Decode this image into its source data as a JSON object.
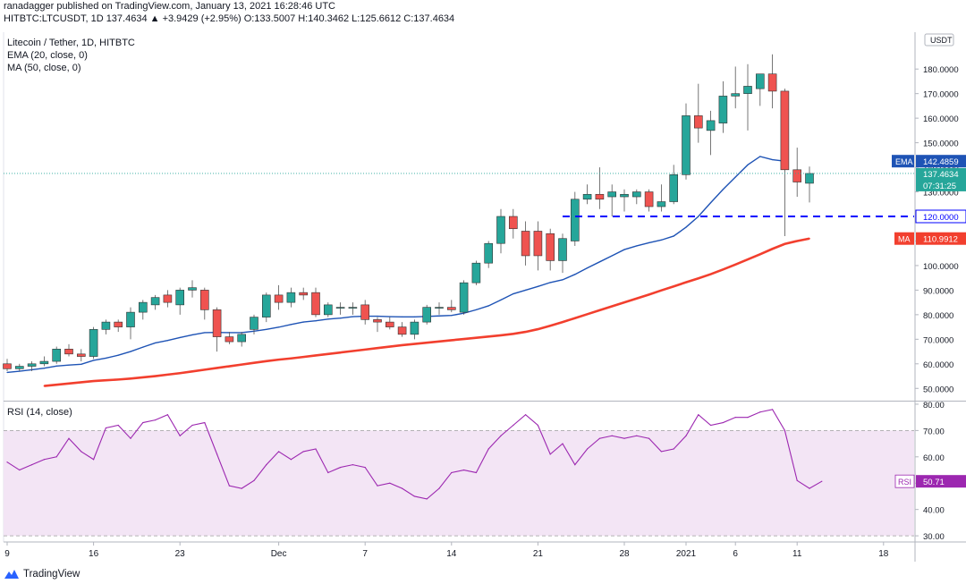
{
  "header": {
    "line1": "ranadagger published on TradingView.com, January 13, 2021 16:28:46 UTC",
    "line2": "HITBTC:LTCUSDT, 1D  137.4634  ▲ +3.9429 (+2.95%)  O:133.5007  H:140.3462  L:125.6612  C:137.4634"
  },
  "legend": {
    "title": "Litecoin / Tether, 1D, HITBTC",
    "ema": "EMA (20, close, 0)",
    "ma": "MA (50, close, 0)",
    "rsi": "RSI (14, close)"
  },
  "footer": {
    "brand": "TradingView"
  },
  "colors": {
    "up": "#26a69a",
    "down": "#ef5350",
    "ema": "#1e53b5",
    "ma": "#f23f2e",
    "rsi_line": "#9c27b0",
    "rsi_band": "#f3e5f5",
    "dash": "#0000ff"
  },
  "chart_data": [
    {
      "type": "candlestick",
      "currency_badge": "USDT",
      "y_ticks": [
        "180.0000",
        "170.0000",
        "160.0000",
        "150.0000",
        "140.0000",
        "130.0000",
        "120.0000",
        "110.0000",
        "100.0000",
        "90.0000",
        "80.0000",
        "70.0000",
        "60.0000",
        "50.0000"
      ],
      "x_tick_labels": [
        "9",
        "16",
        "23",
        "Dec",
        "7",
        "14",
        "21",
        "28",
        "2021",
        "6",
        "11",
        "18"
      ],
      "x_tick_index": [
        0,
        7,
        14,
        22,
        29,
        36,
        43,
        50,
        55,
        59,
        64,
        71
      ],
      "ylim": [
        45,
        195
      ],
      "candles": [
        {
          "o": 60,
          "h": 62,
          "l": 57,
          "c": 58
        },
        {
          "o": 58,
          "h": 60,
          "l": 57,
          "c": 59
        },
        {
          "o": 59,
          "h": 61,
          "l": 57,
          "c": 60
        },
        {
          "o": 60,
          "h": 63,
          "l": 59,
          "c": 61
        },
        {
          "o": 61,
          "h": 67,
          "l": 60,
          "c": 66
        },
        {
          "o": 66,
          "h": 68,
          "l": 63,
          "c": 64
        },
        {
          "o": 64,
          "h": 66,
          "l": 61,
          "c": 63
        },
        {
          "o": 63,
          "h": 75,
          "l": 62,
          "c": 74
        },
        {
          "o": 74,
          "h": 78,
          "l": 72,
          "c": 77
        },
        {
          "o": 77,
          "h": 78,
          "l": 73,
          "c": 75
        },
        {
          "o": 75,
          "h": 83,
          "l": 70,
          "c": 81
        },
        {
          "o": 81,
          "h": 86,
          "l": 78,
          "c": 85
        },
        {
          "o": 84,
          "h": 88,
          "l": 82,
          "c": 87
        },
        {
          "o": 88,
          "h": 90,
          "l": 83,
          "c": 85
        },
        {
          "o": 84,
          "h": 91,
          "l": 80,
          "c": 90
        },
        {
          "o": 90,
          "h": 94,
          "l": 87,
          "c": 91
        },
        {
          "o": 90,
          "h": 91,
          "l": 78,
          "c": 82
        },
        {
          "o": 82,
          "h": 83,
          "l": 65,
          "c": 71
        },
        {
          "o": 71,
          "h": 73,
          "l": 68,
          "c": 69
        },
        {
          "o": 69,
          "h": 73,
          "l": 67,
          "c": 72
        },
        {
          "o": 74,
          "h": 80,
          "l": 72,
          "c": 79
        },
        {
          "o": 79,
          "h": 89,
          "l": 77,
          "c": 88
        },
        {
          "o": 88,
          "h": 92,
          "l": 82,
          "c": 85
        },
        {
          "o": 85,
          "h": 91,
          "l": 83,
          "c": 89
        },
        {
          "o": 89,
          "h": 91,
          "l": 86,
          "c": 88
        },
        {
          "o": 89,
          "h": 91,
          "l": 79,
          "c": 80
        },
        {
          "o": 80,
          "h": 85,
          "l": 79,
          "c": 84
        },
        {
          "o": 83,
          "h": 85,
          "l": 80,
          "c": 83
        },
        {
          "o": 83,
          "h": 85,
          "l": 80,
          "c": 83
        },
        {
          "o": 84,
          "h": 86,
          "l": 76,
          "c": 78
        },
        {
          "o": 78,
          "h": 79,
          "l": 73,
          "c": 77
        },
        {
          "o": 77,
          "h": 79,
          "l": 74,
          "c": 75
        },
        {
          "o": 75,
          "h": 77,
          "l": 71,
          "c": 72
        },
        {
          "o": 72,
          "h": 78,
          "l": 70,
          "c": 77
        },
        {
          "o": 77,
          "h": 84,
          "l": 76,
          "c": 83
        },
        {
          "o": 83,
          "h": 85,
          "l": 80,
          "c": 83
        },
        {
          "o": 83,
          "h": 86,
          "l": 81,
          "c": 82
        },
        {
          "o": 81,
          "h": 94,
          "l": 80,
          "c": 93
        },
        {
          "o": 93,
          "h": 102,
          "l": 92,
          "c": 101
        },
        {
          "o": 101,
          "h": 110,
          "l": 99,
          "c": 109
        },
        {
          "o": 109,
          "h": 123,
          "l": 105,
          "c": 120
        },
        {
          "o": 120,
          "h": 123,
          "l": 111,
          "c": 115
        },
        {
          "o": 114,
          "h": 118,
          "l": 100,
          "c": 104
        },
        {
          "o": 114,
          "h": 118,
          "l": 98,
          "c": 104
        },
        {
          "o": 113,
          "h": 115,
          "l": 98,
          "c": 102
        },
        {
          "o": 102,
          "h": 113,
          "l": 97,
          "c": 111
        },
        {
          "o": 110,
          "h": 130,
          "l": 108,
          "c": 127
        },
        {
          "o": 127,
          "h": 133,
          "l": 125,
          "c": 129
        },
        {
          "o": 129,
          "h": 140,
          "l": 123,
          "c": 127
        },
        {
          "o": 128,
          "h": 133,
          "l": 120,
          "c": 130
        },
        {
          "o": 128,
          "h": 131,
          "l": 122,
          "c": 129
        },
        {
          "o": 128,
          "h": 131,
          "l": 125,
          "c": 130
        },
        {
          "o": 130,
          "h": 131,
          "l": 122,
          "c": 124
        },
        {
          "o": 124,
          "h": 133,
          "l": 122,
          "c": 126
        },
        {
          "o": 126,
          "h": 141,
          "l": 125,
          "c": 137
        },
        {
          "o": 137,
          "h": 166,
          "l": 135,
          "c": 161
        },
        {
          "o": 161,
          "h": 174,
          "l": 150,
          "c": 156
        },
        {
          "o": 155,
          "h": 163,
          "l": 145,
          "c": 159
        },
        {
          "o": 158,
          "h": 175,
          "l": 154,
          "c": 169
        },
        {
          "o": 169,
          "h": 181,
          "l": 164,
          "c": 170
        },
        {
          "o": 170,
          "h": 182,
          "l": 155,
          "c": 173
        },
        {
          "o": 172,
          "h": 178,
          "l": 165,
          "c": 178
        },
        {
          "o": 178,
          "h": 186,
          "l": 164,
          "c": 171
        },
        {
          "o": 171,
          "h": 172,
          "l": 112,
          "c": 139
        },
        {
          "o": 139,
          "h": 148,
          "l": 128,
          "c": 134
        },
        {
          "o": 133.5,
          "h": 140.3,
          "l": 125.7,
          "c": 137.5
        }
      ],
      "ema_20": [
        56.5,
        57,
        57.6,
        58.2,
        59.1,
        59.5,
        59.8,
        61.4,
        62.3,
        63.5,
        65,
        66.8,
        68.5,
        69.5,
        70.7,
        71.8,
        72.7,
        72.8,
        72.7,
        72.7,
        73.3,
        74,
        74.9,
        76,
        77,
        77.5,
        78.2,
        78.6,
        79.2,
        79.4,
        79.4,
        79.2,
        79.1,
        79.1,
        79.3,
        79.5,
        79.7,
        80.6,
        82,
        83.6,
        86,
        88.5,
        90,
        91.5,
        93.1,
        94.2,
        96.4,
        99,
        101.5,
        104,
        106.5,
        108,
        109.3,
        110.4,
        112,
        115.6,
        120,
        125.6,
        131,
        136,
        141,
        144.4,
        143.1,
        142.5
      ],
      "ma_50": [
        51,
        51.5,
        52,
        52.5,
        53,
        53.3,
        53.6,
        54,
        54.5,
        55,
        55.6,
        56.2,
        56.9,
        57.6,
        58.3,
        59,
        59.7,
        60.4,
        61.1,
        61.7,
        62.2,
        62.8,
        63.4,
        64,
        64.6,
        65.2,
        65.8,
        66.4,
        67,
        67.6,
        68.1,
        68.6,
        69.1,
        69.6,
        70.1,
        70.6,
        71.1,
        71.6,
        72.2,
        73,
        74.1,
        75.5,
        77,
        78.6,
        80.2,
        81.8,
        83.4,
        85,
        86.6,
        88.2,
        89.9,
        91.5,
        93.2,
        94.8,
        96.5,
        98.4,
        100.4,
        102.5,
        104.6,
        106.8,
        108.8,
        110,
        111
      ],
      "ema_value_label": "142.4859",
      "price_label": "137.4634",
      "countdown_label": "07:31:25",
      "support_label": "120.0000",
      "support_level": 120,
      "ma_value_label": "110.9912",
      "tag_ema": "EMA",
      "tag_ma": "MA"
    },
    {
      "type": "line",
      "title": "RSI (14, close)",
      "y_ticks": [
        "80.00",
        "70.00",
        "60.00",
        "50.00",
        "40.00",
        "30.00"
      ],
      "band": [
        30,
        70
      ],
      "ylim": [
        28,
        81
      ],
      "values": [
        58,
        55,
        57,
        59,
        60,
        67,
        62,
        59,
        71,
        72,
        67,
        73,
        74,
        76,
        68,
        72,
        73,
        61,
        49,
        48,
        51,
        57,
        62,
        59,
        62,
        63,
        54,
        56,
        57,
        56,
        49,
        50,
        48,
        45,
        44,
        48,
        54,
        55,
        54,
        63,
        68,
        72,
        76,
        72,
        61,
        65,
        57,
        63,
        67,
        68,
        67,
        68,
        67,
        62,
        63,
        68,
        76,
        72,
        73,
        75,
        75,
        77,
        78,
        70,
        51,
        48,
        50.7
      ],
      "value_label": "50.71",
      "tag": "RSI"
    }
  ]
}
